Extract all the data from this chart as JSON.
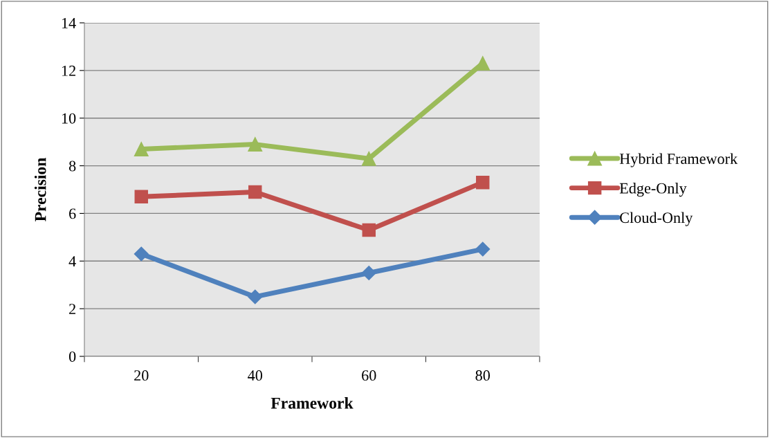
{
  "chart_data": {
    "type": "line",
    "xlabel": "Framework",
    "ylabel": "Precision",
    "categories": [
      "20",
      "40",
      "60",
      "80"
    ],
    "series": [
      {
        "name": "Hybrid Framework",
        "color": "#9bbb59",
        "marker": "triangle",
        "values": [
          8.7,
          8.9,
          8.3,
          12.3
        ]
      },
      {
        "name": "Edge-Only",
        "color": "#c0504d",
        "marker": "square",
        "values": [
          6.7,
          6.9,
          5.3,
          7.3
        ]
      },
      {
        "name": "Cloud-Only",
        "color": "#4f81bd",
        "marker": "diamond",
        "values": [
          4.3,
          2.5,
          3.5,
          4.5
        ]
      }
    ],
    "ylim": [
      0,
      14
    ],
    "yticks": [
      0,
      2,
      4,
      6,
      8,
      10,
      12,
      14
    ],
    "grid": "y",
    "legend": "right",
    "line_style": "solid"
  }
}
